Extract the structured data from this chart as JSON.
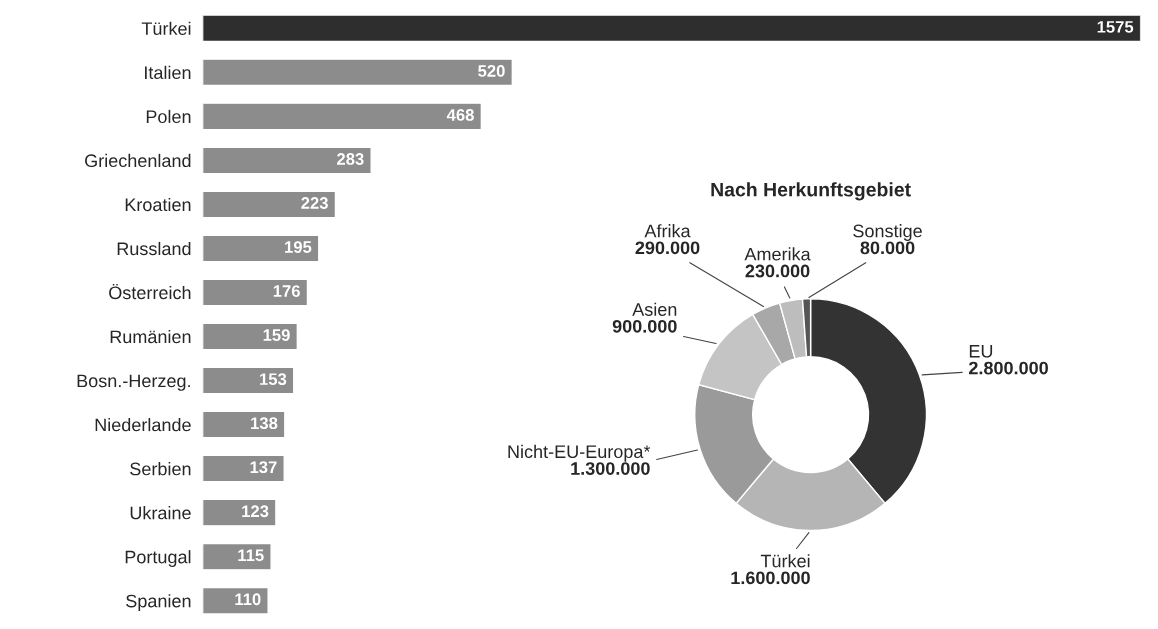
{
  "chart_data": [
    {
      "type": "bar",
      "orientation": "horizontal",
      "data_labels": true,
      "categories": [
        "Türkei",
        "Italien",
        "Polen",
        "Griechenland",
        "Kroatien",
        "Russland",
        "Österreich",
        "Rumänien",
        "Bosn.-Herzeg.",
        "Niederlande",
        "Serbien",
        "Ukraine",
        "Portugal",
        "Spanien"
      ],
      "values": [
        1575,
        520,
        468,
        283,
        223,
        195,
        176,
        159,
        153,
        138,
        137,
        123,
        115,
        110
      ],
      "colors": [
        "#2e2e2e",
        "#8c8c8c",
        "#8c8c8c",
        "#8c8c8c",
        "#8c8c8c",
        "#8c8c8c",
        "#8c8c8c",
        "#8c8c8c",
        "#8c8c8c",
        "#8c8c8c",
        "#8c8c8c",
        "#8c8c8c",
        "#8c8c8c",
        "#8c8c8c"
      ]
    },
    {
      "type": "donut",
      "title": "Nach Herkunftsgebiet",
      "categories": [
        "EU",
        "Türkei",
        "Nicht-EU-Europa*",
        "Asien",
        "Afrika",
        "Amerika",
        "Sonstige"
      ],
      "values": [
        2800000,
        1600000,
        1300000,
        900000,
        290000,
        230000,
        80000
      ],
      "value_labels": [
        "2.800.000",
        "1.600.000",
        "1.300.000",
        "900.000",
        "290.000",
        "230.000",
        "80.000"
      ],
      "colors": [
        "#333333",
        "#b5b5b5",
        "#9a9a9a",
        "#c4c4c4",
        "#a8a8a8",
        "#bdbdbd",
        "#555555"
      ]
    }
  ]
}
